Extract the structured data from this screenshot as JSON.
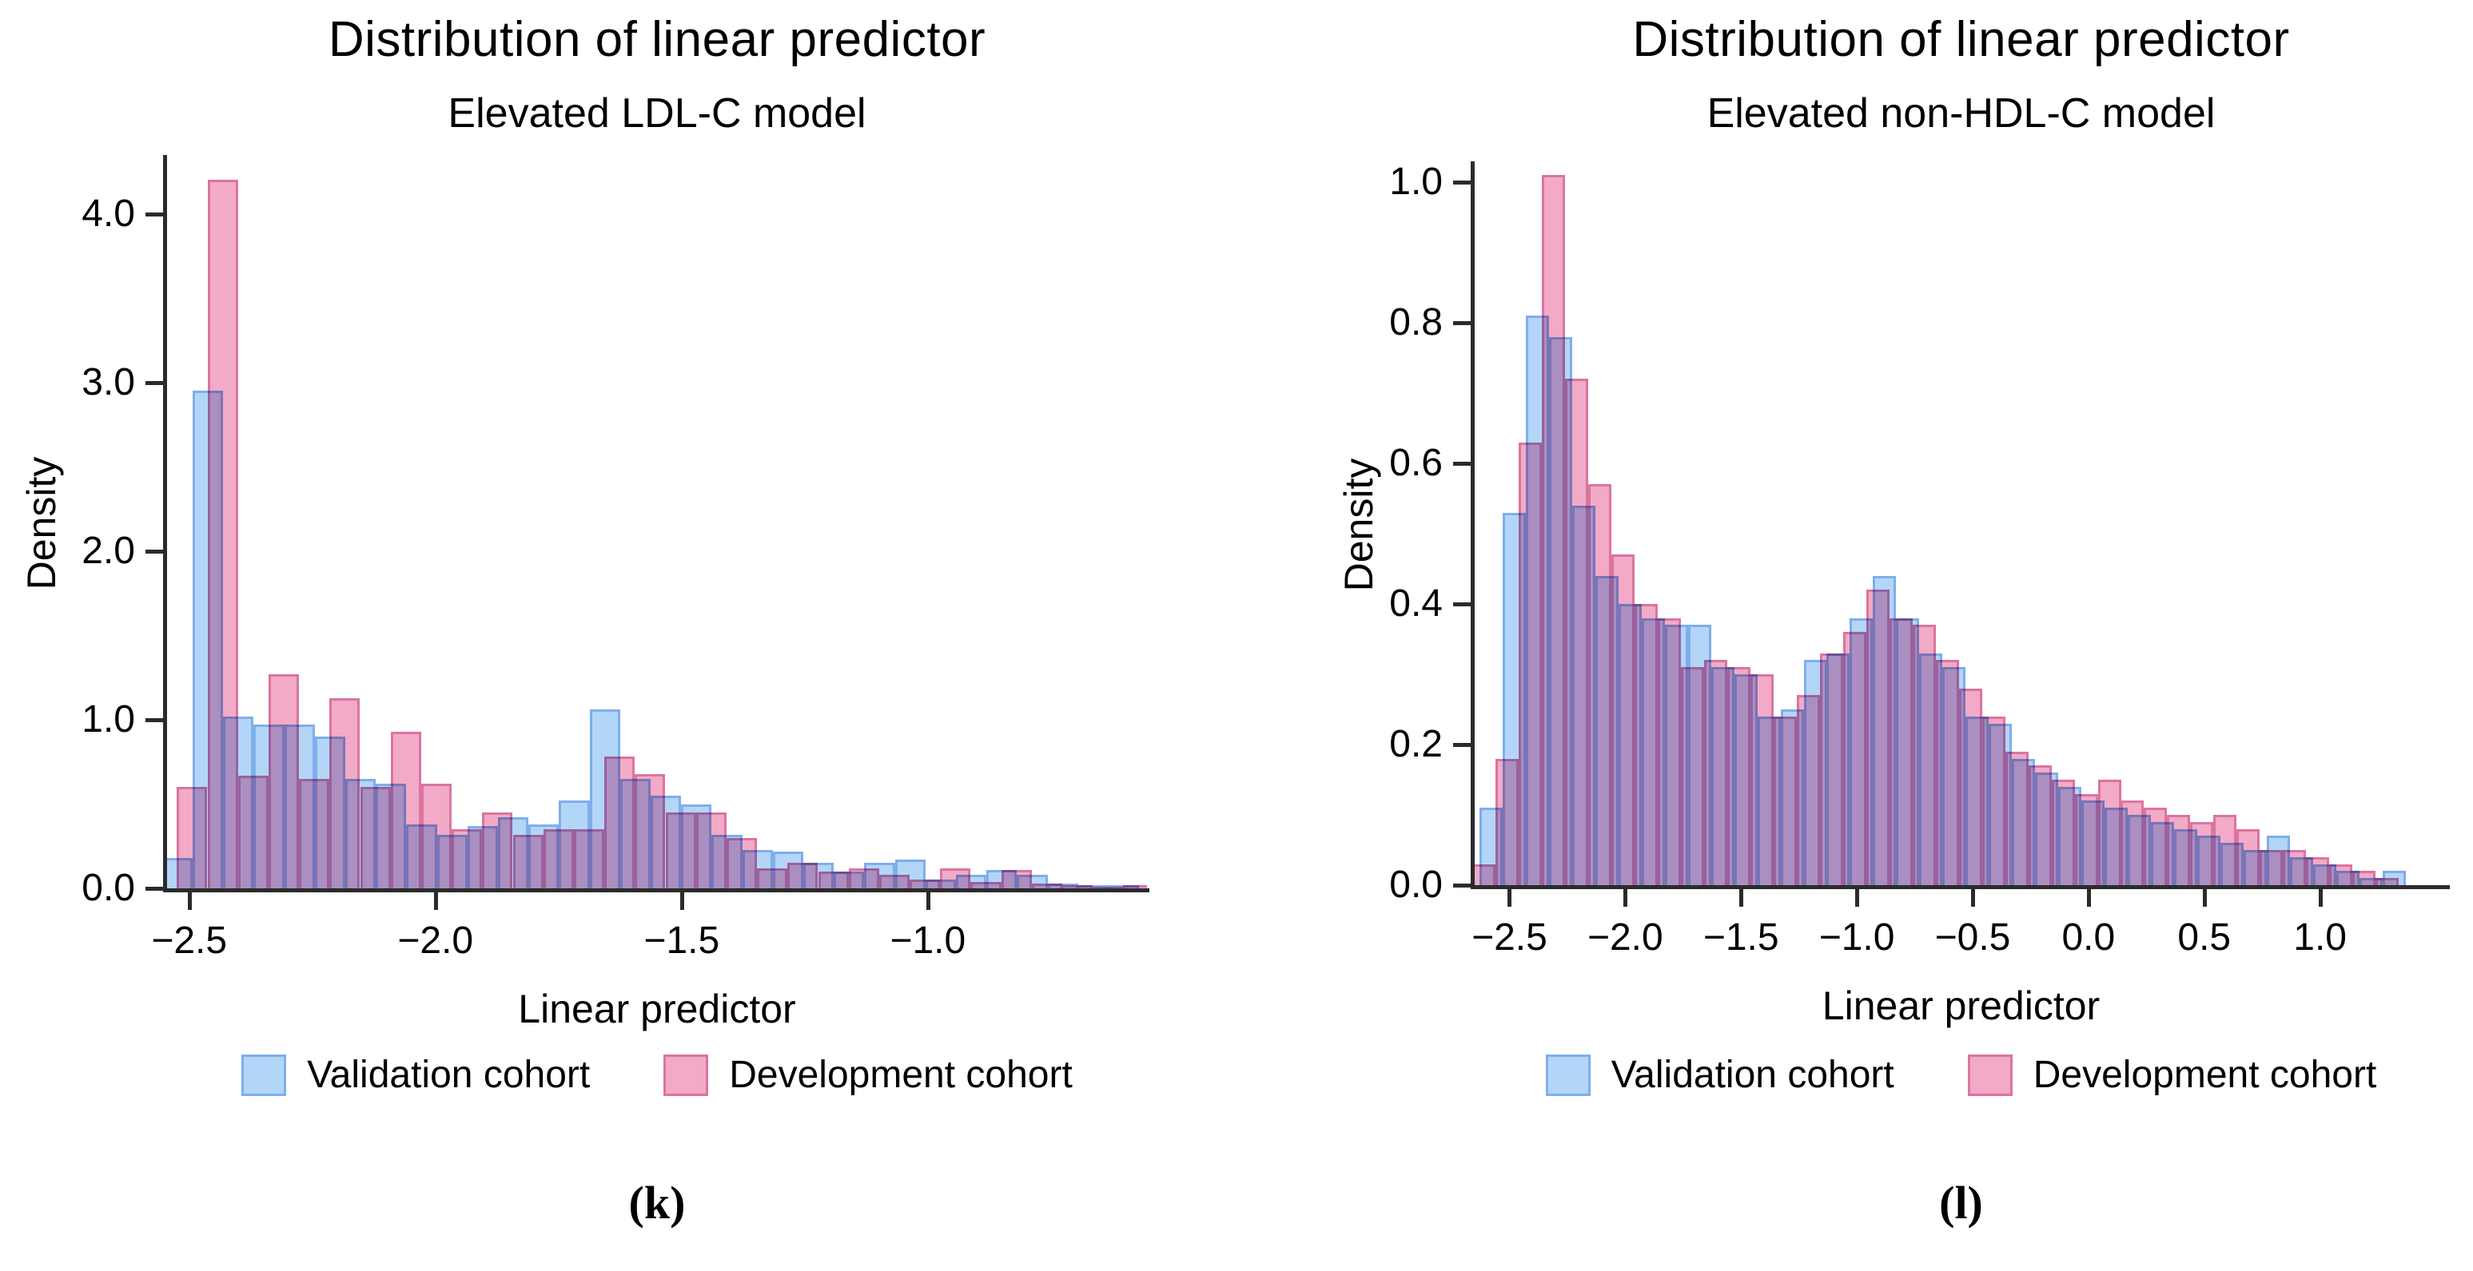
{
  "figure": {
    "background": "#ffffff",
    "axis_color": "#2b2b2b",
    "legend": {
      "items": [
        {
          "label": "Validation cohort",
          "fill": "#B3D6F8",
          "border": "#7FAEEC"
        },
        {
          "label": "Development cohort",
          "fill": "#F2AAC6",
          "border": "#DB74A2"
        }
      ]
    }
  },
  "chart_data": [
    {
      "type": "histogram",
      "panel_label": "(k)",
      "title": "Distribution of linear predictor",
      "subtitle": "Elevated LDL-C model",
      "xlabel": "Linear predictor",
      "ylabel": "Density",
      "xlim": [
        -2.545,
        -0.555
      ],
      "ylim": [
        0,
        4.33
      ],
      "x_ticks": [
        {
          "v": -2.5,
          "label": "−2.5"
        },
        {
          "v": -2.0,
          "label": "−2.0"
        },
        {
          "v": -1.5,
          "label": "−1.5"
        },
        {
          "v": -1.0,
          "label": "−1.0"
        }
      ],
      "y_ticks": [
        {
          "v": 0.0,
          "label": "0.0"
        },
        {
          "v": 1.0,
          "label": "1.0"
        },
        {
          "v": 2.0,
          "label": "2.0"
        },
        {
          "v": 3.0,
          "label": "3.0"
        },
        {
          "v": 4.0,
          "label": "4.0"
        }
      ],
      "grid": false,
      "legend_position": "bottom",
      "series": [
        {
          "name": "Validation cohort",
          "role": "validation",
          "fill": "#B3D6F8",
          "border": "#7FAEEC",
          "bin_start": -2.555,
          "bin_width": 0.062,
          "heights": [
            0.18,
            2.95,
            1.02,
            0.97,
            0.97,
            0.9,
            0.65,
            0.62,
            0.38,
            0.32,
            0.37,
            0.42,
            0.38,
            0.52,
            1.06,
            0.65,
            0.55,
            0.5,
            0.32,
            0.23,
            0.22,
            0.15,
            0.1,
            0.15,
            0.17,
            0.05,
            0.08,
            0.11,
            0.08,
            0.03,
            0.02,
            0.02
          ]
        },
        {
          "name": "Development cohort",
          "role": "development",
          "fill": "#F2AAC6",
          "border": "#DB74A2",
          "bin_start": -2.525,
          "bin_width": 0.062,
          "heights": [
            0.6,
            4.2,
            0.67,
            1.27,
            0.65,
            1.13,
            0.6,
            0.93,
            0.62,
            0.35,
            0.45,
            0.32,
            0.35,
            0.35,
            0.78,
            0.68,
            0.45,
            0.45,
            0.3,
            0.12,
            0.15,
            0.1,
            0.12,
            0.08,
            0.05,
            0.12,
            0.04,
            0.11,
            0.03,
            0.02,
            0.01,
            0.02
          ]
        }
      ]
    },
    {
      "type": "histogram",
      "panel_label": "(l)",
      "title": "Distribution of linear predictor",
      "subtitle": "Elevated non-HDL-C model",
      "xlabel": "Linear predictor",
      "ylabel": "Density",
      "xlim": [
        -2.65,
        1.55
      ],
      "ylim": [
        0,
        1.025
      ],
      "x_ticks": [
        {
          "v": -2.5,
          "label": "−2.5"
        },
        {
          "v": -2.0,
          "label": "−2.0"
        },
        {
          "v": -1.5,
          "label": "−1.5"
        },
        {
          "v": -1.0,
          "label": "−1.0"
        },
        {
          "v": -0.5,
          "label": "−0.5"
        },
        {
          "v": 0.0,
          "label": "0.0"
        },
        {
          "v": 0.5,
          "label": "0.5"
        },
        {
          "v": 1.0,
          "label": "1.0"
        }
      ],
      "y_ticks": [
        {
          "v": 0.0,
          "label": "0.0"
        },
        {
          "v": 0.2,
          "label": "0.2"
        },
        {
          "v": 0.4,
          "label": "0.4"
        },
        {
          "v": 0.6,
          "label": "0.6"
        },
        {
          "v": 0.8,
          "label": "0.8"
        },
        {
          "v": 1.0,
          "label": "1.0"
        }
      ],
      "grid": false,
      "legend_position": "bottom",
      "series": [
        {
          "name": "Validation cohort",
          "role": "validation",
          "fill": "#B3D6F8",
          "border": "#7FAEEC",
          "bin_start": -2.63,
          "bin_width": 0.1,
          "heights": [
            0.11,
            0.53,
            0.81,
            0.78,
            0.54,
            0.44,
            0.4,
            0.38,
            0.37,
            0.37,
            0.31,
            0.3,
            0.24,
            0.25,
            0.32,
            0.33,
            0.38,
            0.44,
            0.38,
            0.33,
            0.31,
            0.24,
            0.23,
            0.18,
            0.16,
            0.14,
            0.12,
            0.11,
            0.1,
            0.09,
            0.08,
            0.07,
            0.06,
            0.05,
            0.07,
            0.04,
            0.03,
            0.02,
            0.01,
            0.02
          ]
        },
        {
          "name": "Development cohort",
          "role": "development",
          "fill": "#F2AAC6",
          "border": "#DB74A2",
          "bin_start": -2.66,
          "bin_width": 0.1,
          "heights": [
            0.03,
            0.18,
            0.63,
            1.01,
            0.72,
            0.57,
            0.47,
            0.4,
            0.38,
            0.31,
            0.32,
            0.31,
            0.3,
            0.24,
            0.27,
            0.33,
            0.36,
            0.42,
            0.38,
            0.37,
            0.32,
            0.28,
            0.24,
            0.19,
            0.17,
            0.15,
            0.13,
            0.15,
            0.12,
            0.11,
            0.1,
            0.09,
            0.1,
            0.08,
            0.05,
            0.05,
            0.04,
            0.03,
            0.02,
            0.01
          ]
        }
      ]
    }
  ]
}
